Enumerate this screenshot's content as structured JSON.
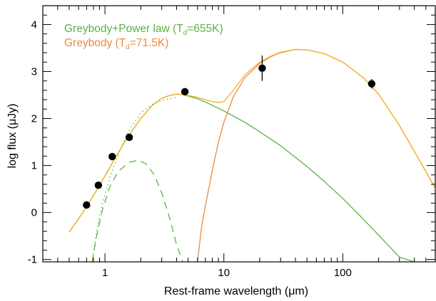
{
  "chart_data": {
    "type": "line",
    "xlabel": "Rest-frame wavelength (μm)",
    "ylabel": "log flux (μJy)",
    "xscale": "log",
    "xlim": [
      0.3,
      600
    ],
    "ylim": [
      -1.05,
      4.4
    ],
    "x_ticks": [
      {
        "value": 1,
        "label": "1"
      },
      {
        "value": 10,
        "label": "10"
      },
      {
        "value": 100,
        "label": "100"
      }
    ],
    "y_ticks": [
      {
        "value": -1,
        "label": "-1"
      },
      {
        "value": 0,
        "label": "0"
      },
      {
        "value": 1,
        "label": "1"
      },
      {
        "value": 2,
        "label": "2"
      },
      {
        "value": 3,
        "label": "3"
      },
      {
        "value": 4,
        "label": "4"
      }
    ],
    "grid": false,
    "legend_position": "top-left",
    "legend": [
      {
        "text": "Greybody+Power law (T",
        "sub": "d",
        "text_end": "=655K)",
        "color": "#5ab245"
      },
      {
        "text": "Greybody (T",
        "sub": "d",
        "text_end": "=71.5K)",
        "color": "#ee8a3a"
      }
    ],
    "series": [
      {
        "style": "solid",
        "color": "#5ab245",
        "x": [
          0.5,
          0.6,
          0.7,
          0.8,
          0.9,
          1.0,
          1.2,
          1.5,
          2.0,
          2.5,
          3.0,
          3.5,
          4.0,
          4.5,
          5.0,
          6.0,
          7.0,
          8.0,
          10,
          15,
          20,
          30,
          50,
          70,
          100,
          150,
          200,
          300,
          400
        ],
        "y": [
          -0.42,
          -0.13,
          0.12,
          0.36,
          0.58,
          0.78,
          1.13,
          1.55,
          2.0,
          2.28,
          2.43,
          2.49,
          2.52,
          2.51,
          2.48,
          2.42,
          2.35,
          2.28,
          2.16,
          1.92,
          1.72,
          1.42,
          0.98,
          0.66,
          0.3,
          -0.15,
          -0.48,
          -0.95,
          -1.05
        ]
      },
      {
        "style": "dotted",
        "color": "#5ab245",
        "x": [
          0.78,
          0.85,
          0.95,
          1.1,
          1.3,
          1.6,
          2.0,
          2.5,
          3.0,
          3.5,
          4.0
        ],
        "y": [
          -1.05,
          -0.4,
          0.18,
          0.75,
          1.25,
          1.75,
          2.12,
          2.3,
          2.38,
          2.42,
          2.45
        ]
      },
      {
        "style": "dashed",
        "color": "#5ab245",
        "x": [
          0.78,
          0.85,
          0.95,
          1.1,
          1.3,
          1.6,
          1.9,
          2.2,
          2.6,
          3.0,
          3.5,
          4.0,
          4.5
        ],
        "y": [
          -1.05,
          -0.5,
          0.05,
          0.55,
          0.88,
          1.07,
          1.11,
          1.04,
          0.8,
          0.42,
          -0.12,
          -0.68,
          -1.05
        ]
      },
      {
        "style": "solid",
        "color": "#ee8a3a",
        "x": [
          6.0,
          6.5,
          7.0,
          8.0,
          9.0,
          10,
          12,
          15,
          20,
          25,
          30,
          40,
          50,
          70,
          100,
          150,
          200,
          300,
          400,
          600
        ],
        "y": [
          -1.05,
          -0.3,
          0.15,
          0.9,
          1.5,
          1.92,
          2.46,
          2.87,
          3.17,
          3.32,
          3.4,
          3.47,
          3.46,
          3.38,
          3.2,
          2.86,
          2.52,
          1.85,
          1.3,
          0.52
        ]
      },
      {
        "style": "solid",
        "color": "#f3b322",
        "x": [
          0.5,
          0.6,
          0.7,
          0.8,
          0.9,
          1.0,
          1.2,
          1.5,
          2.0,
          2.5,
          3.0,
          3.5,
          4.0,
          4.5,
          5.0,
          6.0,
          7.0,
          8.0,
          9.0,
          10,
          12,
          15,
          20,
          25,
          30,
          40,
          50,
          70,
          100,
          150,
          200,
          300,
          400,
          600
        ],
        "y": [
          -0.42,
          -0.13,
          0.12,
          0.36,
          0.58,
          0.78,
          1.13,
          1.55,
          2.0,
          2.28,
          2.43,
          2.49,
          2.52,
          2.51,
          2.49,
          2.45,
          2.4,
          2.36,
          2.34,
          2.36,
          2.6,
          2.93,
          3.2,
          3.33,
          3.41,
          3.47,
          3.46,
          3.38,
          3.2,
          2.86,
          2.52,
          1.85,
          1.3,
          0.52
        ]
      }
    ],
    "points": [
      {
        "x": 0.7,
        "y": 0.16
      },
      {
        "x": 0.88,
        "y": 0.58
      },
      {
        "x": 1.15,
        "y": 1.19
      },
      {
        "x": 1.6,
        "y": 1.6
      },
      {
        "x": 4.7,
        "y": 2.57
      },
      {
        "x": 21,
        "y": 3.07,
        "yerr": 0.27
      },
      {
        "x": 175,
        "y": 2.74,
        "yerr": 0.1
      }
    ]
  }
}
